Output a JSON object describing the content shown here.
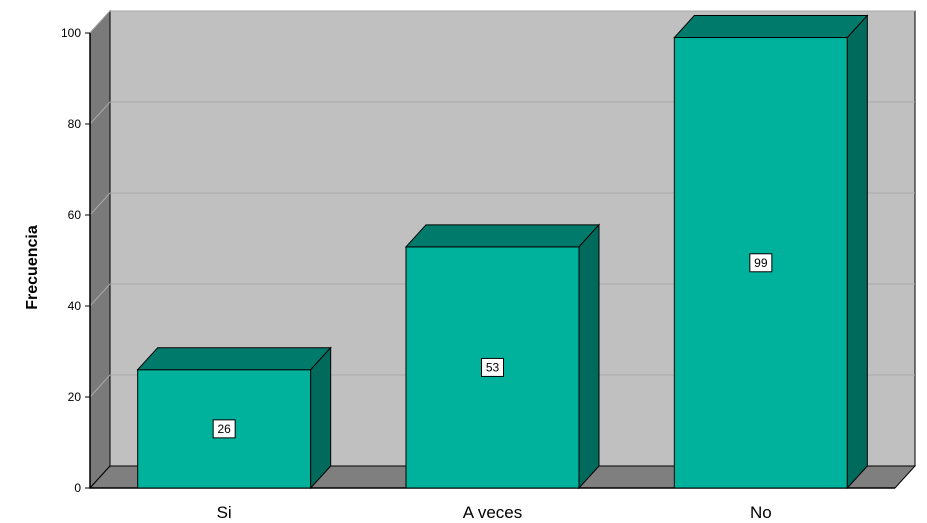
{
  "chart_data": {
    "type": "bar",
    "categories": [
      "Si",
      "A veces",
      "No"
    ],
    "values": [
      26,
      53,
      99
    ],
    "ylabel": "Frecuencia",
    "xlabel": "",
    "ylim": [
      0,
      100
    ],
    "yticks": [
      "0",
      "20",
      "40",
      "60",
      "80",
      "100"
    ],
    "data_labels": [
      "26",
      "53",
      "99"
    ],
    "grid": true,
    "style": "3d-bar",
    "colors": {
      "bar_front": "#00b29c",
      "bar_top": "#007a6a",
      "bar_side": "#006a5c",
      "plot_back": "#c0c0c0",
      "left_wall": "#7a7a7a",
      "floor": "#7f7f7f",
      "gridline": "#a9a9a9"
    }
  }
}
